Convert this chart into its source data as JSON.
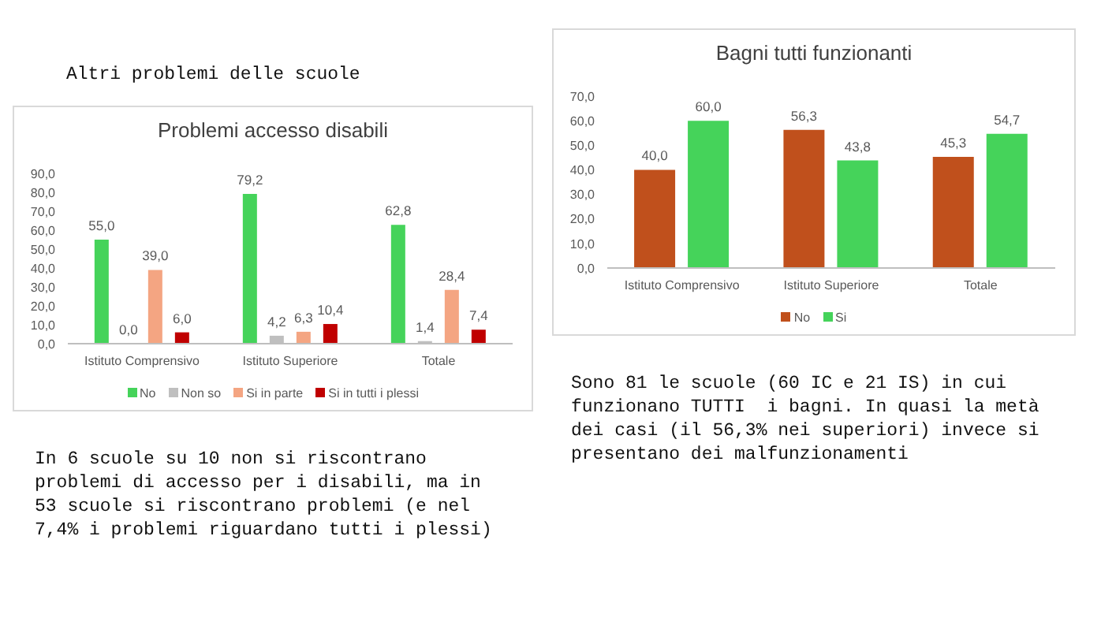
{
  "chart_data": [
    {
      "type": "bar",
      "title": "Problemi accesso disabili",
      "categories": [
        "Istituto Comprensivo",
        "Istituto Superiore",
        "Totale"
      ],
      "series": [
        {
          "name": "No",
          "color": "#45d35a",
          "values": [
            55.0,
            79.2,
            62.8
          ],
          "value_labels": [
            "55,0",
            "79,2",
            "62,8"
          ]
        },
        {
          "name": "Non so",
          "color": "#bfbfbf",
          "values": [
            0.0,
            4.2,
            1.4
          ],
          "value_labels": [
            "0,0",
            "4,2",
            "1,4"
          ]
        },
        {
          "name": "Si in parte",
          "color": "#f4a582",
          "values": [
            39.0,
            6.3,
            28.4
          ],
          "value_labels": [
            "39,0",
            "6,3",
            "28,4"
          ]
        },
        {
          "name": "Si in tutti i plessi",
          "color": "#c00000",
          "values": [
            6.0,
            10.4,
            7.4
          ],
          "value_labels": [
            "6,0",
            "10,4",
            "7,4"
          ]
        }
      ],
      "ylim": [
        0,
        90
      ],
      "yticks": [
        {
          "value": 0,
          "label": "0,0"
        },
        {
          "value": 10,
          "label": "10,0"
        },
        {
          "value": 20,
          "label": "20,0"
        },
        {
          "value": 30,
          "label": "30,0"
        },
        {
          "value": 40,
          "label": "40,0"
        },
        {
          "value": 50,
          "label": "50,0"
        },
        {
          "value": 60,
          "label": "60,0"
        },
        {
          "value": 70,
          "label": "70,0"
        },
        {
          "value": 80,
          "label": "80,0"
        },
        {
          "value": 90,
          "label": "90,0"
        }
      ],
      "grid": false,
      "legend": "bottom",
      "annotations": [
        "Altri problemi delle scuole",
        "In 6 scuole su 10 non si riscontrano problemi di accesso per i disabili, ma in 53 scuole si riscontrano problemi (e nel 7,4% i problemi riguardano tutti i plessi)"
      ]
    },
    {
      "type": "bar",
      "title": "Bagni tutti funzionanti",
      "categories": [
        "Istituto Comprensivo",
        "Istituto Superiore",
        "Totale"
      ],
      "series": [
        {
          "name": "No",
          "color": "#c0501c",
          "values": [
            40.0,
            56.3,
            45.3
          ],
          "value_labels": [
            "40,0",
            "56,3",
            "45,3"
          ]
        },
        {
          "name": "Si",
          "color": "#45d35a",
          "values": [
            60.0,
            43.8,
            54.7
          ],
          "value_labels": [
            "60,0",
            "43,8",
            "54,7"
          ]
        }
      ],
      "ylim": [
        0,
        70
      ],
      "yticks": [
        {
          "value": 0,
          "label": "0,0"
        },
        {
          "value": 10,
          "label": "10,0"
        },
        {
          "value": 20,
          "label": "20,0"
        },
        {
          "value": 30,
          "label": "30,0"
        },
        {
          "value": 40,
          "label": "40,0"
        },
        {
          "value": 50,
          "label": "50,0"
        },
        {
          "value": 60,
          "label": "60,0"
        },
        {
          "value": 70,
          "label": "70,0"
        }
      ],
      "grid": false,
      "legend": "bottom",
      "annotations": [
        "Sono 81 le scuole (60 IC e 21 IS) in cui funzionano TUTTI  i bagni. In quasi la metà dei casi (il 56,3% nei superiori) invece si presentano dei malfunzionamenti"
      ]
    }
  ]
}
